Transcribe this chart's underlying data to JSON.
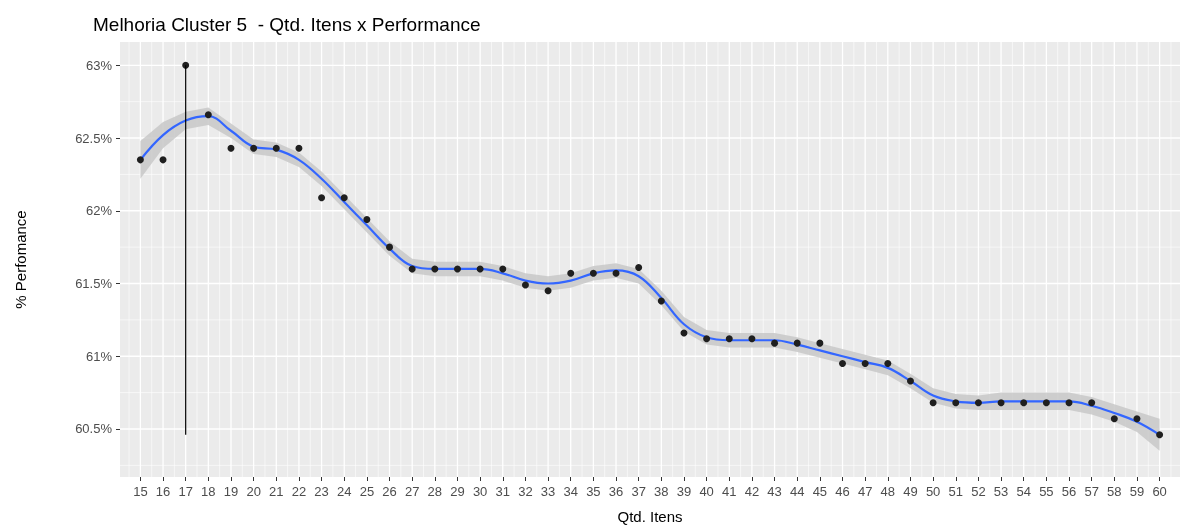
{
  "chart_data": {
    "type": "scatter",
    "title": "Melhoria Cluster 5  - Qtd. Itens x Performance",
    "xlabel": "Qtd. Itens",
    "ylabel": "% Perfomance",
    "x": [
      15,
      16,
      17,
      18,
      19,
      20,
      21,
      22,
      23,
      24,
      25,
      26,
      27,
      28,
      29,
      30,
      31,
      32,
      33,
      34,
      35,
      36,
      37,
      38,
      39,
      40,
      41,
      42,
      43,
      44,
      45,
      46,
      47,
      48,
      49,
      50,
      51,
      52,
      53,
      54,
      55,
      56,
      57,
      58,
      59,
      60
    ],
    "series": [
      {
        "type": "line",
        "marker": "none",
        "color": "#3366ff",
        "values": [
          62.35,
          62.52,
          62.62,
          62.65,
          62.55,
          62.44,
          62.42,
          62.35,
          62.22,
          62.06,
          61.9,
          61.74,
          61.62,
          61.6,
          61.6,
          61.6,
          61.57,
          61.52,
          61.5,
          61.52,
          61.57,
          61.59,
          61.55,
          61.4,
          61.22,
          61.13,
          61.11,
          61.11,
          61.11,
          61.08,
          61.04,
          61.0,
          60.96,
          60.92,
          60.83,
          60.73,
          60.69,
          60.68,
          60.69,
          60.69,
          60.69,
          60.69,
          60.66,
          60.61,
          60.55,
          60.46
        ],
        "lower": [
          62.22,
          62.43,
          62.56,
          62.59,
          62.5,
          62.39,
          62.37,
          62.3,
          62.17,
          62.01,
          61.85,
          61.69,
          61.57,
          61.55,
          61.55,
          61.55,
          61.52,
          61.47,
          61.45,
          61.47,
          61.52,
          61.54,
          61.5,
          61.35,
          61.17,
          61.08,
          61.06,
          61.06,
          61.06,
          61.03,
          60.99,
          60.95,
          60.91,
          60.87,
          60.78,
          60.68,
          60.64,
          60.63,
          60.63,
          60.63,
          60.63,
          60.63,
          60.6,
          60.55,
          60.48,
          60.35
        ],
        "upper": [
          62.48,
          62.61,
          62.68,
          62.71,
          62.6,
          62.49,
          62.47,
          62.4,
          62.27,
          62.11,
          61.95,
          61.79,
          61.67,
          61.65,
          61.65,
          61.65,
          61.62,
          61.57,
          61.55,
          61.57,
          61.62,
          61.64,
          61.6,
          61.45,
          61.27,
          61.18,
          61.16,
          61.16,
          61.16,
          61.13,
          61.09,
          61.05,
          61.01,
          60.97,
          60.88,
          60.78,
          60.74,
          60.73,
          60.75,
          60.75,
          60.75,
          60.75,
          60.72,
          60.67,
          60.62,
          60.57
        ]
      },
      {
        "marker": "circle",
        "color": "#1f1f1f",
        "values": [
          62.35,
          62.35,
          63.0,
          62.66,
          62.43,
          62.43,
          62.43,
          62.43,
          62.09,
          62.09,
          61.94,
          61.75,
          61.6,
          61.6,
          61.6,
          61.6,
          61.6,
          61.49,
          61.45,
          61.57,
          61.57,
          61.57,
          61.61,
          61.38,
          61.16,
          61.12,
          61.12,
          61.12,
          61.09,
          61.09,
          61.09,
          60.95,
          60.95,
          60.95,
          60.83,
          60.68,
          60.68,
          60.68,
          60.68,
          60.68,
          60.68,
          60.68,
          60.68,
          60.57,
          60.57,
          60.46
        ]
      }
    ],
    "ref_lines": [
      {
        "axis": "x",
        "value": 17,
        "color": "#000000"
      }
    ],
    "xlim": [
      14.1,
      60.9
    ],
    "ylim": [
      60.17,
      63.16
    ],
    "xticks": [
      15,
      16,
      17,
      18,
      19,
      20,
      21,
      22,
      23,
      24,
      25,
      26,
      27,
      28,
      29,
      30,
      31,
      32,
      33,
      34,
      35,
      36,
      37,
      38,
      39,
      40,
      41,
      42,
      43,
      44,
      45,
      46,
      47,
      48,
      49,
      50,
      51,
      52,
      53,
      54,
      55,
      56,
      57,
      58,
      59,
      60
    ],
    "yticks": [
      {
        "value": 60.5,
        "label": "60.5%"
      },
      {
        "value": 61,
        "label": "61%"
      },
      {
        "value": 61.5,
        "label": "61.5%"
      },
      {
        "value": 62,
        "label": "62%"
      },
      {
        "value": 62.5,
        "label": "62.5%"
      },
      {
        "value": 63,
        "label": "63%"
      }
    ],
    "grid": true,
    "line_style": "solid"
  }
}
